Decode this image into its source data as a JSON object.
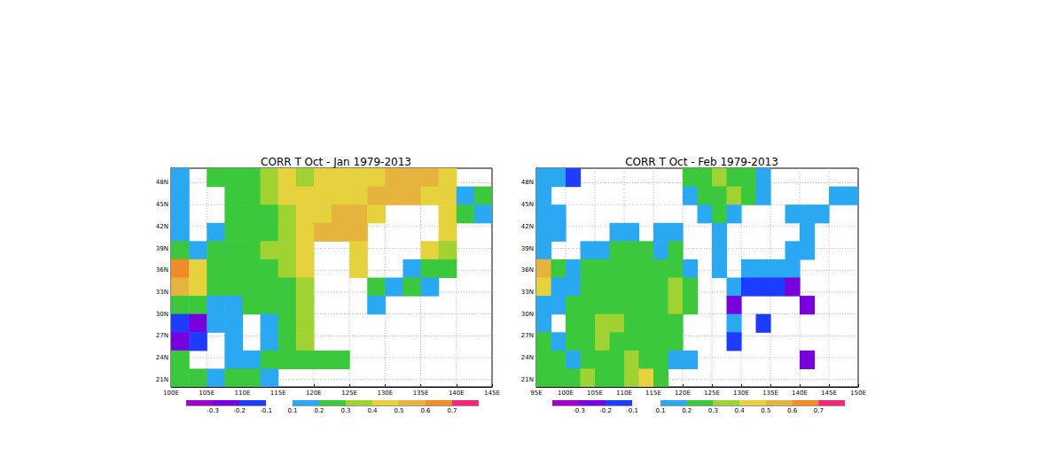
{
  "chart_data": [
    {
      "type": "heatmap",
      "title": "CORR T Oct - Jan 1979-2013",
      "grid": true,
      "xlim": [
        100,
        145
      ],
      "ylim": [
        20,
        50
      ],
      "xticks": [
        {
          "value": 100,
          "label": "100E"
        },
        {
          "value": 105,
          "label": "105E"
        },
        {
          "value": 110,
          "label": "110E"
        },
        {
          "value": 115,
          "label": "115E"
        },
        {
          "value": 120,
          "label": "120E"
        },
        {
          "value": 125,
          "label": "125E"
        },
        {
          "value": 130,
          "label": "130E"
        },
        {
          "value": 135,
          "label": "135E"
        },
        {
          "value": 140,
          "label": "140E"
        },
        {
          "value": 145,
          "label": "145E"
        }
      ],
      "yticks": [
        {
          "value": 21,
          "label": "21N"
        },
        {
          "value": 24,
          "label": "24N"
        },
        {
          "value": 27,
          "label": "27N"
        },
        {
          "value": 30,
          "label": "30N"
        },
        {
          "value": 33,
          "label": "33N"
        },
        {
          "value": 36,
          "label": "36N"
        },
        {
          "value": 39,
          "label": "39N"
        },
        {
          "value": 42,
          "label": "42N"
        },
        {
          "value": 45,
          "label": "45N"
        },
        {
          "value": 48,
          "label": "48N"
        }
      ],
      "x": [
        101.25,
        103.75,
        106.25,
        108.75,
        111.25,
        113.75,
        116.25,
        118.75,
        121.25,
        123.75,
        126.25,
        128.75,
        131.25,
        133.75,
        136.25,
        138.75,
        141.25,
        143.75
      ],
      "y": [
        48.75,
        46.25,
        43.75,
        41.25,
        38.75,
        36.25,
        33.75,
        31.25,
        28.75,
        26.25,
        23.75,
        21.25
      ],
      "values": [
        [
          0.15,
          null,
          0.25,
          0.25,
          0.25,
          0.35,
          0.45,
          0.35,
          0.45,
          0.45,
          0.45,
          0.45,
          0.55,
          0.55,
          0.55,
          0.45,
          null,
          null
        ],
        [
          0.15,
          null,
          null,
          0.25,
          0.25,
          0.35,
          0.45,
          0.45,
          0.45,
          0.45,
          0.45,
          0.55,
          0.55,
          0.55,
          0.45,
          0.45,
          0.15,
          0.25
        ],
        [
          0.15,
          null,
          null,
          0.25,
          0.25,
          0.25,
          0.35,
          0.45,
          0.45,
          0.55,
          0.55,
          0.45,
          null,
          null,
          null,
          0.45,
          0.25,
          0.15
        ],
        [
          0.15,
          null,
          0.15,
          0.25,
          0.25,
          0.25,
          0.35,
          0.45,
          0.55,
          0.55,
          0.55,
          null,
          null,
          null,
          null,
          0.45,
          null,
          null
        ],
        [
          0.25,
          0.15,
          0.25,
          0.25,
          0.25,
          0.35,
          0.35,
          0.45,
          null,
          null,
          0.45,
          null,
          null,
          null,
          0.45,
          0.35,
          null,
          null
        ],
        [
          0.65,
          0.45,
          0.25,
          0.25,
          0.25,
          0.25,
          0.35,
          0.45,
          null,
          null,
          0.45,
          null,
          null,
          0.15,
          0.25,
          0.25,
          null,
          null
        ],
        [
          0.55,
          0.45,
          0.25,
          0.25,
          0.25,
          0.25,
          0.25,
          0.35,
          null,
          null,
          null,
          0.25,
          0.15,
          0.25,
          0.15,
          null,
          null,
          null
        ],
        [
          0.25,
          0.25,
          0.15,
          0.15,
          0.25,
          0.25,
          0.25,
          0.35,
          null,
          null,
          null,
          0.15,
          null,
          null,
          null,
          null,
          null,
          null
        ],
        [
          -0.15,
          -0.25,
          0.15,
          0.15,
          null,
          0.15,
          0.25,
          0.35,
          null,
          null,
          null,
          null,
          null,
          null,
          null,
          null,
          null,
          null
        ],
        [
          -0.25,
          -0.15,
          null,
          0.15,
          null,
          0.15,
          0.25,
          0.35,
          null,
          null,
          null,
          null,
          null,
          null,
          null,
          null,
          null,
          null
        ],
        [
          0.25,
          null,
          null,
          0.15,
          0.15,
          0.25,
          0.25,
          0.25,
          0.25,
          0.25,
          null,
          null,
          null,
          null,
          null,
          null,
          null,
          null
        ],
        [
          0.25,
          0.25,
          0.15,
          0.25,
          0.25,
          0.15,
          null,
          null,
          null,
          null,
          null,
          null,
          null,
          null,
          null,
          null,
          null,
          null
        ]
      ],
      "colorbar": {
        "negative": {
          "range": [
            -0.4,
            -0.1
          ],
          "ticks": [
            -0.3,
            -0.2,
            -0.1
          ],
          "colors": [
            "#a000c8",
            "#7800dc",
            "#1e3cff"
          ]
        },
        "positive": {
          "range": [
            0.1,
            0.8
          ],
          "ticks": [
            0.1,
            0.2,
            0.3,
            0.4,
            0.5,
            0.6,
            0.7
          ],
          "colors": [
            "#2aa8f2",
            "#3cc83c",
            "#a0d232",
            "#e6d23c",
            "#e6b43c",
            "#f08c28",
            "#f0287a"
          ]
        }
      }
    },
    {
      "type": "heatmap",
      "title": "CORR T Oct - Feb 1979-2013",
      "grid": true,
      "xlim": [
        95,
        150
      ],
      "ylim": [
        20,
        50
      ],
      "xticks": [
        {
          "value": 95,
          "label": "95E"
        },
        {
          "value": 100,
          "label": "100E"
        },
        {
          "value": 105,
          "label": "105E"
        },
        {
          "value": 110,
          "label": "110E"
        },
        {
          "value": 115,
          "label": "115E"
        },
        {
          "value": 120,
          "label": "120E"
        },
        {
          "value": 125,
          "label": "125E"
        },
        {
          "value": 130,
          "label": "130E"
        },
        {
          "value": 135,
          "label": "135E"
        },
        {
          "value": 140,
          "label": "140E"
        },
        {
          "value": 145,
          "label": "145E"
        },
        {
          "value": 150,
          "label": "150E"
        }
      ],
      "yticks": [
        {
          "value": 21,
          "label": "21N"
        },
        {
          "value": 24,
          "label": "24N"
        },
        {
          "value": 27,
          "label": "27N"
        },
        {
          "value": 30,
          "label": "30N"
        },
        {
          "value": 33,
          "label": "33N"
        },
        {
          "value": 36,
          "label": "36N"
        },
        {
          "value": 39,
          "label": "39N"
        },
        {
          "value": 42,
          "label": "42N"
        },
        {
          "value": 45,
          "label": "45N"
        },
        {
          "value": 48,
          "label": "48N"
        }
      ],
      "x": [
        96.25,
        98.75,
        101.25,
        103.75,
        106.25,
        108.75,
        111.25,
        113.75,
        116.25,
        118.75,
        121.25,
        123.75,
        126.25,
        128.75,
        131.25,
        133.75,
        136.25,
        138.75,
        141.25,
        143.75,
        146.25,
        148.75
      ],
      "y": [
        48.75,
        46.25,
        43.75,
        41.25,
        38.75,
        36.25,
        33.75,
        31.25,
        28.75,
        26.25,
        23.75,
        21.25
      ],
      "values": [
        [
          0.15,
          0.15,
          -0.15,
          null,
          null,
          null,
          null,
          null,
          null,
          null,
          0.25,
          0.25,
          0.35,
          0.25,
          0.25,
          0.15,
          null,
          null,
          null,
          null,
          null,
          null
        ],
        [
          0.15,
          null,
          null,
          null,
          null,
          null,
          null,
          null,
          null,
          null,
          0.15,
          0.25,
          0.25,
          0.35,
          0.25,
          0.15,
          null,
          null,
          null,
          null,
          0.15,
          0.15
        ],
        [
          0.15,
          0.15,
          null,
          null,
          null,
          null,
          null,
          null,
          null,
          null,
          null,
          0.15,
          0.25,
          0.15,
          null,
          null,
          null,
          0.15,
          0.15,
          0.15,
          null,
          null
        ],
        [
          0.15,
          0.15,
          null,
          null,
          null,
          0.15,
          0.15,
          null,
          0.15,
          0.15,
          null,
          null,
          0.15,
          null,
          null,
          null,
          null,
          null,
          0.15,
          null,
          null,
          null
        ],
        [
          0.15,
          null,
          null,
          0.15,
          0.15,
          0.25,
          0.25,
          0.25,
          0.15,
          0.25,
          null,
          null,
          0.15,
          null,
          null,
          null,
          null,
          0.15,
          0.15,
          null,
          null,
          null
        ],
        [
          0.55,
          0.25,
          0.15,
          0.25,
          0.25,
          0.25,
          0.25,
          0.25,
          0.25,
          0.25,
          0.15,
          null,
          0.15,
          null,
          0.15,
          0.15,
          0.15,
          0.15,
          null,
          null,
          null,
          null
        ],
        [
          0.45,
          0.15,
          0.15,
          0.25,
          0.25,
          0.25,
          0.25,
          0.25,
          0.25,
          0.35,
          0.25,
          null,
          null,
          0.15,
          -0.15,
          -0.15,
          -0.15,
          -0.25,
          null,
          null,
          null,
          null
        ],
        [
          0.15,
          0.15,
          0.25,
          0.25,
          0.25,
          0.25,
          0.25,
          0.25,
          0.25,
          0.35,
          0.25,
          null,
          null,
          -0.25,
          null,
          null,
          null,
          null,
          -0.25,
          null,
          null,
          null
        ],
        [
          0.15,
          null,
          0.25,
          0.25,
          0.35,
          0.35,
          0.25,
          0.25,
          0.25,
          0.25,
          null,
          null,
          null,
          0.15,
          null,
          -0.15,
          null,
          null,
          null,
          null,
          null,
          null
        ],
        [
          0.25,
          0.15,
          0.25,
          0.25,
          0.35,
          0.25,
          0.25,
          0.25,
          0.25,
          0.25,
          null,
          null,
          null,
          -0.15,
          null,
          null,
          null,
          null,
          null,
          null,
          null,
          null
        ],
        [
          0.25,
          0.25,
          0.15,
          0.25,
          0.25,
          0.25,
          0.35,
          0.25,
          0.25,
          0.15,
          0.15,
          null,
          null,
          null,
          null,
          null,
          null,
          null,
          -0.25,
          null,
          null,
          null
        ],
        [
          0.25,
          0.25,
          0.25,
          0.35,
          0.25,
          0.25,
          0.35,
          0.45,
          0.25,
          null,
          null,
          null,
          null,
          null,
          null,
          null,
          null,
          null,
          null,
          null,
          null,
          null
        ]
      ],
      "colorbar": {
        "negative": {
          "range": [
            -0.4,
            -0.1
          ],
          "ticks": [
            -0.3,
            -0.2,
            -0.1
          ],
          "colors": [
            "#a000c8",
            "#7800dc",
            "#1e3cff"
          ]
        },
        "positive": {
          "range": [
            0.1,
            0.8
          ],
          "ticks": [
            0.1,
            0.2,
            0.3,
            0.4,
            0.5,
            0.6,
            0.7
          ],
          "colors": [
            "#2aa8f2",
            "#3cc83c",
            "#a0d232",
            "#e6d23c",
            "#e6b43c",
            "#f08c28",
            "#f0287a"
          ]
        }
      }
    }
  ]
}
